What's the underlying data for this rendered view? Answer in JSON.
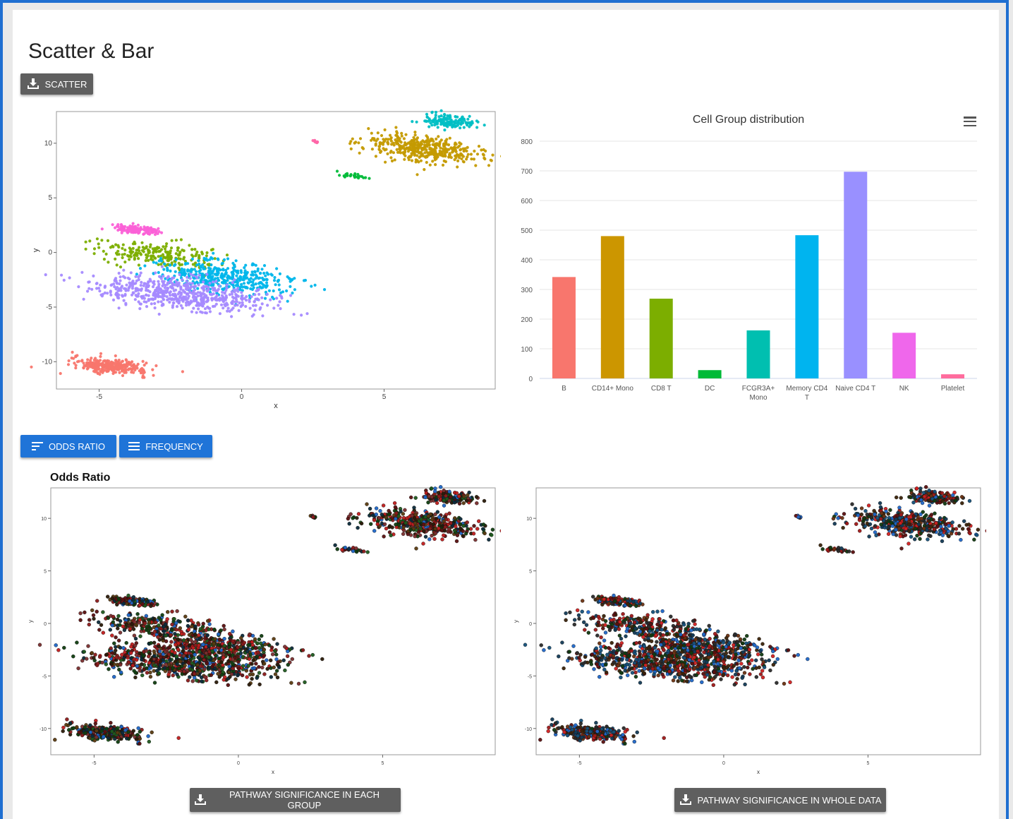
{
  "page": {
    "title": "Scatter & Bar"
  },
  "buttons": {
    "scatter_download": "SCATTER",
    "odds_ratio": "ODDS RATIO",
    "frequency": "FREQUENCY",
    "pathway_each_group": "PATHWAY SIGNIFICANCE IN EACH GROUP",
    "pathway_whole_data": "PATHWAY SIGNIFICANCE IN WHOLE DATA"
  },
  "section": {
    "odds_ratio_title": "Odds Ratio"
  },
  "icons": {
    "download": "download-icon",
    "sort": "sort-icon",
    "menu": "menu-icon",
    "chart_menu": "hamburger-icon"
  },
  "colors": {
    "button_gray": "#5f5f5f",
    "button_blue": "#1f74d8",
    "frame": "#1f6fd1"
  },
  "chart_data": [
    {
      "id": "scatter-main",
      "type": "scatter",
      "xlabel": "x",
      "ylabel": "y",
      "xlim": [
        -6.5,
        8.9
      ],
      "ylim": [
        -12.5,
        12.9
      ],
      "xticks": [
        -5,
        0,
        5
      ],
      "yticks": [
        -10,
        -5,
        0,
        5,
        10
      ],
      "grid": false,
      "clusters": [
        {
          "group": "B",
          "color": "#f8766d",
          "cx": -4.6,
          "cy": -10.4,
          "sx": 0.65,
          "sy": 0.32,
          "n": 300
        },
        {
          "group": "CD14+ Mono",
          "color": "#c49a00",
          "cx": 6.4,
          "cy": 9.5,
          "sx": 1.05,
          "sy": 0.6,
          "n": 420
        },
        {
          "group": "CD8 T",
          "color": "#7cae00",
          "cx": -3.0,
          "cy": -0.2,
          "sx": 1.1,
          "sy": 0.55,
          "n": 220
        },
        {
          "group": "DC",
          "color": "#00ba38",
          "cx": 3.95,
          "cy": 7.0,
          "sx": 0.3,
          "sy": 0.12,
          "n": 24
        },
        {
          "group": "FCGR3A+ Mono",
          "color": "#00bfc4",
          "cx": 7.3,
          "cy": 12.0,
          "sx": 0.45,
          "sy": 0.3,
          "n": 140
        },
        {
          "group": "Memory CD4 T",
          "color": "#00b6eb",
          "cx": -0.6,
          "cy": -2.3,
          "sx": 1.2,
          "sy": 0.75,
          "n": 420
        },
        {
          "group": "Naive CD4 T",
          "color": "#a58aff",
          "cx": -2.1,
          "cy": -3.8,
          "sx": 1.5,
          "sy": 0.7,
          "n": 600
        },
        {
          "group": "NK",
          "color": "#fb61d7",
          "cx": -3.8,
          "cy": 2.1,
          "sx": 0.4,
          "sy": 0.2,
          "n": 130
        },
        {
          "group": "Platelet",
          "color": "#ff66a8",
          "cx": 2.6,
          "cy": 10.1,
          "sx": 0.12,
          "sy": 0.06,
          "n": 10
        }
      ]
    },
    {
      "id": "cell-group-bar",
      "type": "bar",
      "title": "Cell Group distribution",
      "categories": [
        "B",
        "CD14+ Mono",
        "CD8 T",
        "DC",
        "FCGR3A+ Mono",
        "Memory CD4 T",
        "Naive CD4 T",
        "NK",
        "Platelet"
      ],
      "values": [
        342,
        480,
        269,
        28,
        162,
        483,
        697,
        154,
        14
      ],
      "colors": [
        "#f8766d",
        "#cc9600",
        "#7cae00",
        "#00ba38",
        "#00bfb0",
        "#00b4ef",
        "#9990ff",
        "#ef67eb",
        "#ff6c9d"
      ],
      "ylim": [
        0,
        800
      ],
      "yticks": [
        0,
        100,
        200,
        300,
        400,
        500,
        600,
        700,
        800
      ],
      "grid": true
    },
    {
      "id": "scatter-odds-each",
      "type": "scatter",
      "xlabel": "x",
      "ylabel": "y",
      "xlim": [
        -6.5,
        8.9
      ],
      "ylim": [
        -12.5,
        12.9
      ],
      "xticks": [
        -5,
        0,
        5
      ],
      "yticks": [
        -10,
        -5,
        0,
        5,
        10
      ],
      "grid": false,
      "palette": [
        "#8b1a1a",
        "#5a0f0f",
        "#2a1a08",
        "#0f3d0f",
        "#1e5a1e",
        "#0b2a3a",
        "#c01c1c",
        "#1e66c8",
        "#7a2e2e",
        "#5a3a10"
      ]
    },
    {
      "id": "scatter-odds-whole",
      "type": "scatter",
      "xlabel": "x",
      "ylabel": "y",
      "xlim": [
        -6.5,
        8.9
      ],
      "ylim": [
        -12.5,
        12.9
      ],
      "xticks": [
        -5,
        0,
        5
      ],
      "yticks": [
        -10,
        -5,
        0,
        5,
        10
      ],
      "grid": false,
      "palette": [
        "#a01818",
        "#5a0f0f",
        "#3a2208",
        "#1e66c8",
        "#123a56",
        "#103a10",
        "#d12020",
        "#2a2a2a",
        "#6a3010",
        "#14507a"
      ]
    }
  ]
}
